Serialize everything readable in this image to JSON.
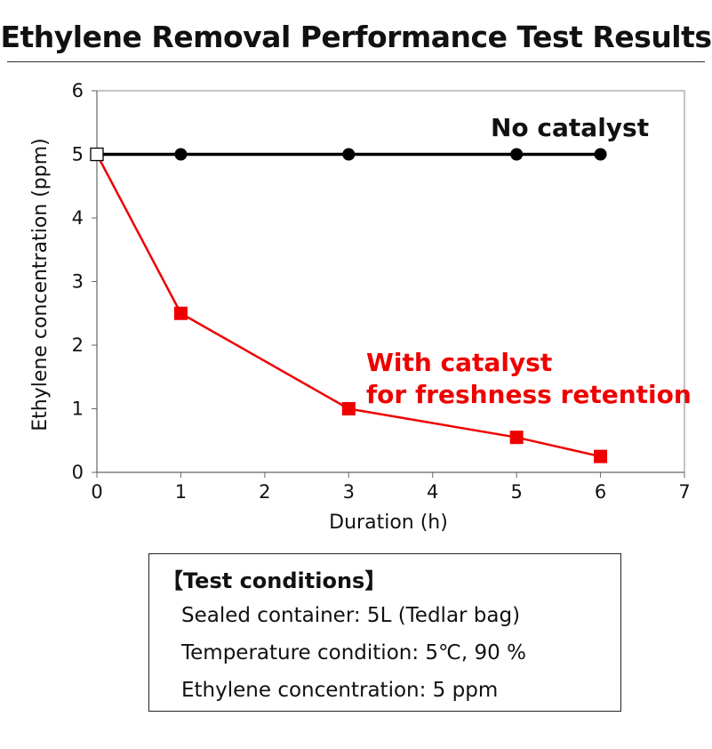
{
  "chart_data": {
    "type": "line",
    "title": "Ethylene Removal Performance Test Results",
    "xlabel": "Duration (h)",
    "ylabel": "Ethylene concentration (ppm)",
    "xlim": [
      0,
      7
    ],
    "ylim": [
      0,
      6
    ],
    "xticks": [
      "0",
      "1",
      "2",
      "3",
      "4",
      "5",
      "6",
      "7"
    ],
    "yticks": [
      "0",
      "1",
      "2",
      "3",
      "4",
      "5",
      "6"
    ],
    "grid": false,
    "series": [
      {
        "name": "No catalyst",
        "color": "#000000",
        "marker": "circle",
        "points": [
          [
            0,
            5
          ],
          [
            1,
            5
          ],
          [
            3,
            5
          ],
          [
            5,
            5
          ],
          [
            6,
            5
          ]
        ]
      },
      {
        "name_lines": [
          "With catalyst",
          "for freshness retention"
        ],
        "color": "#ee0000",
        "marker": "square",
        "points": [
          [
            0,
            5
          ],
          [
            1,
            2.5
          ],
          [
            3,
            1.0
          ],
          [
            5,
            0.55
          ],
          [
            6,
            0.25
          ]
        ]
      }
    ]
  },
  "test_conditions": {
    "heading": "【Test conditions】",
    "lines": [
      "Sealed container: 5L (Tedlar bag)",
      "Temperature condition: 5℃, 90 %",
      "Ethylene concentration: 5 ppm"
    ]
  }
}
